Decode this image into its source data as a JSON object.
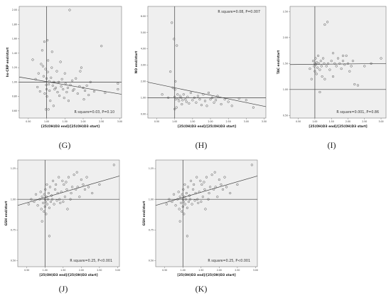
{
  "colors": {
    "plot_bg": "#efefef",
    "frame": "#7a7a7a",
    "ref_line": "#404040",
    "fit_line": "#404040",
    "point": "#444444"
  },
  "chart_data": [
    {
      "type": "scatter",
      "id": "G",
      "panel_label": "(G)",
      "xlabel": "[25(OH)D3 end]/[25(OH)D3 start]",
      "ylabel": "hs-CRP end/start",
      "xlim": [
        0.25,
        3.05
      ],
      "ylim": [
        0.5,
        2.05
      ],
      "xticks": [
        "0.50",
        "1.00",
        "1.50",
        "2.00",
        "2.50",
        "3.00"
      ],
      "yticks": [
        "0.60",
        "0.80",
        "1.00",
        "1.20",
        "1.40",
        "1.60",
        "1.80",
        "2.00"
      ],
      "xtick_values": [
        0.5,
        1.0,
        1.5,
        2.0,
        2.5,
        3.0
      ],
      "ytick_values": [
        0.6,
        0.8,
        1.0,
        1.2,
        1.4,
        1.6,
        1.8,
        2.0
      ],
      "ref_x": 1.0,
      "ref_y": 1.0,
      "fit": {
        "x1": 0.25,
        "y1": 1.07,
        "x2": 3.05,
        "y2": 0.83
      },
      "stat_text": "R square=0.03, P=0.10",
      "stat_pos": "bottom-right",
      "points": [
        [
          0.62,
          1.31
        ],
        [
          0.7,
          1.04
        ],
        [
          0.75,
          0.93
        ],
        [
          0.78,
          1.12
        ],
        [
          0.82,
          0.87
        ],
        [
          0.85,
          1.25
        ],
        [
          0.88,
          1.44
        ],
        [
          0.9,
          1.22
        ],
        [
          0.92,
          1.08
        ],
        [
          0.94,
          1.56
        ],
        [
          0.95,
          0.84
        ],
        [
          0.97,
          1.18
        ],
        [
          0.98,
          0.62
        ],
        [
          0.99,
          0.96
        ],
        [
          1.0,
          1.05
        ],
        [
          1.0,
          0.9
        ],
        [
          1.01,
          0.8
        ],
        [
          1.02,
          1.58
        ],
        [
          1.03,
          1.14
        ],
        [
          1.04,
          1.3
        ],
        [
          1.05,
          0.62
        ],
        [
          1.06,
          0.97
        ],
        [
          1.07,
          1.01
        ],
        [
          1.08,
          0.88
        ],
        [
          1.1,
          0.74
        ],
        [
          1.12,
          1.06
        ],
        [
          1.14,
          1.2
        ],
        [
          1.15,
          1.42
        ],
        [
          1.17,
          0.95
        ],
        [
          1.19,
          0.67
        ],
        [
          1.2,
          1.0
        ],
        [
          1.22,
          0.9
        ],
        [
          1.25,
          0.92
        ],
        [
          1.28,
          1.15
        ],
        [
          1.3,
          0.86
        ],
        [
          1.33,
          1.0
        ],
        [
          1.35,
          0.81
        ],
        [
          1.38,
          1.28
        ],
        [
          1.4,
          0.94
        ],
        [
          1.42,
          1.04
        ],
        [
          1.45,
          0.9
        ],
        [
          1.48,
          0.78
        ],
        [
          1.5,
          1.12
        ],
        [
          1.52,
          0.98
        ],
        [
          1.55,
          0.86
        ],
        [
          1.58,
          0.92
        ],
        [
          1.6,
          0.74
        ],
        [
          1.63,
          2.0
        ],
        [
          1.65,
          0.96
        ],
        [
          1.7,
          1.02
        ],
        [
          1.72,
          0.88
        ],
        [
          1.75,
          0.9
        ],
        [
          1.8,
          1.05
        ],
        [
          1.85,
          0.84
        ],
        [
          1.9,
          0.94
        ],
        [
          1.92,
          1.15
        ],
        [
          1.95,
          1.2
        ],
        [
          2.0,
          0.92
        ],
        [
          2.02,
          0.76
        ],
        [
          2.05,
          0.88
        ],
        [
          2.1,
          0.95
        ],
        [
          2.15,
          0.82
        ],
        [
          2.2,
          1.0
        ],
        [
          2.3,
          0.87
        ],
        [
          2.5,
          1.5
        ],
        [
          2.6,
          0.85
        ],
        [
          2.95,
          0.98
        ],
        [
          2.95,
          0.9
        ]
      ]
    },
    {
      "type": "scatter",
      "id": "H",
      "panel_label": "(H)",
      "xlabel": "[25(OH)D3 end]/[25(OH)D3 start]",
      "ylabel": "NO end/start",
      "xlim": [
        0.25,
        3.55
      ],
      "ylim": [
        -0.25,
        6.6
      ],
      "xticks": [
        "0.50",
        "1.00",
        "1.50",
        "2.00",
        "2.50",
        "3.00",
        "3.50"
      ],
      "yticks": [
        "0.00",
        "1.00",
        "2.00",
        "3.00",
        "4.00",
        "5.00",
        "6.00"
      ],
      "xtick_values": [
        0.5,
        1.0,
        1.5,
        2.0,
        2.5,
        3.0,
        3.5
      ],
      "ytick_values": [
        0.0,
        1.0,
        2.0,
        3.0,
        4.0,
        5.0,
        6.0
      ],
      "ref_x": 1.0,
      "ref_y": 1.0,
      "fit": {
        "x1": 0.25,
        "y1": 1.95,
        "x2": 3.55,
        "y2": 0.45
      },
      "stat_text": "R square=0.08, P=0.007",
      "stat_pos": "top-right",
      "points": [
        [
          0.65,
          1.2
        ],
        [
          0.82,
          1.0
        ],
        [
          0.88,
          2.6
        ],
        [
          0.92,
          5.6
        ],
        [
          0.95,
          1.6
        ],
        [
          0.98,
          4.6
        ],
        [
          1.0,
          1.05
        ],
        [
          1.0,
          0.3
        ],
        [
          1.01,
          1.5
        ],
        [
          1.02,
          2.0
        ],
        [
          1.03,
          0.9
        ],
        [
          1.05,
          0.4
        ],
        [
          1.06,
          4.2
        ],
        [
          1.08,
          1.2
        ],
        [
          1.1,
          0.95
        ],
        [
          1.12,
          0.8
        ],
        [
          1.15,
          1.1
        ],
        [
          1.18,
          1.0
        ],
        [
          1.2,
          0.6
        ],
        [
          1.22,
          0.85
        ],
        [
          1.25,
          1.2
        ],
        [
          1.3,
          0.9
        ],
        [
          1.33,
          0.75
        ],
        [
          1.36,
          1.05
        ],
        [
          1.4,
          0.65
        ],
        [
          1.45,
          1.3
        ],
        [
          1.5,
          0.85
        ],
        [
          1.55,
          1.0
        ],
        [
          1.6,
          0.7
        ],
        [
          1.65,
          1.1
        ],
        [
          1.7,
          0.9
        ],
        [
          1.75,
          0.55
        ],
        [
          1.8,
          1.2
        ],
        [
          1.85,
          0.8
        ],
        [
          1.9,
          0.5
        ],
        [
          1.95,
          1.3
        ],
        [
          2.0,
          0.9
        ],
        [
          2.05,
          1.0
        ],
        [
          2.1,
          0.7
        ],
        [
          2.15,
          0.85
        ],
        [
          2.2,
          1.1
        ],
        [
          2.3,
          0.6
        ],
        [
          2.4,
          0.9
        ],
        [
          2.5,
          0.75
        ],
        [
          2.6,
          0.5
        ],
        [
          2.8,
          0.95
        ],
        [
          3.0,
          0.85
        ],
        [
          3.2,
          0.4
        ]
      ]
    },
    {
      "type": "scatter",
      "id": "I",
      "panel_label": "(I)",
      "xlabel": "[25(OH)D3 end]/[25(OH)D3 start]",
      "ylabel": "TAC end/start",
      "xlim": [
        0.25,
        3.15
      ],
      "ylim": [
        0.45,
        2.6
      ],
      "xticks": [
        "0.50",
        "1.00",
        "1.50",
        "2.00",
        "2.50",
        "3.00"
      ],
      "yticks": [
        "0.50",
        "1.00",
        "1.50",
        "2.00",
        "2.50"
      ],
      "xtick_values": [
        0.5,
        1.0,
        1.5,
        2.0,
        2.5,
        3.0
      ],
      "ytick_values": [
        0.5,
        1.0,
        1.5,
        2.0,
        2.5
      ],
      "ref_x": 1.0,
      "ref_y": 1.0,
      "fit": {
        "x1": 0.25,
        "y1": 1.48,
        "x2": 3.15,
        "y2": 1.5
      },
      "stat_text": "R square=0.001, P=0.86",
      "stat_pos": "bottom-right",
      "points": [
        [
          0.85,
          1.4
        ],
        [
          0.9,
          1.2
        ],
        [
          0.95,
          1.55
        ],
        [
          0.98,
          1.45
        ],
        [
          1.0,
          1.5
        ],
        [
          1.0,
          1.35
        ],
        [
          1.02,
          1.6
        ],
        [
          1.03,
          1.48
        ],
        [
          1.05,
          1.3
        ],
        [
          1.06,
          1.52
        ],
        [
          1.08,
          1.42
        ],
        [
          1.1,
          1.65
        ],
        [
          1.12,
          1.5
        ],
        [
          1.15,
          1.38
        ],
        [
          1.18,
          1.55
        ],
        [
          1.2,
          1.45
        ],
        [
          1.22,
          1.25
        ],
        [
          1.25,
          1.6
        ],
        [
          1.28,
          1.5
        ],
        [
          1.3,
          1.2
        ],
        [
          1.35,
          1.45
        ],
        [
          1.38,
          2.3
        ],
        [
          1.4,
          1.5
        ],
        [
          1.45,
          1.38
        ],
        [
          1.5,
          1.55
        ],
        [
          1.55,
          1.25
        ],
        [
          1.6,
          1.5
        ],
        [
          1.65,
          1.45
        ],
        [
          1.7,
          1.6
        ],
        [
          1.75,
          1.5
        ],
        [
          1.8,
          1.4
        ],
        [
          1.85,
          1.55
        ],
        [
          1.9,
          1.48
        ],
        [
          1.95,
          1.65
        ],
        [
          2.0,
          1.5
        ],
        [
          2.05,
          1.35
        ],
        [
          2.1,
          1.45
        ],
        [
          2.15,
          1.55
        ],
        [
          2.2,
          1.1
        ],
        [
          2.3,
          1.08
        ],
        [
          2.5,
          1.45
        ],
        [
          2.7,
          1.5
        ],
        [
          3.0,
          1.6
        ],
        [
          1.3,
          2.25
        ],
        [
          1.15,
          0.95
        ],
        [
          1.55,
          1.7
        ],
        [
          1.85,
          1.65
        ]
      ]
    },
    {
      "type": "scatter",
      "id": "J",
      "panel_label": "(J)",
      "xlabel": "[25(OH)D3 end]/[25(OH)D3 start]",
      "ylabel": "GSH end/start",
      "xlim": [
        0.25,
        3.05
      ],
      "ylim": [
        0.45,
        1.32
      ],
      "xticks": [
        "0.50",
        "1.00",
        "1.50",
        "2.00",
        "2.50",
        "3.00"
      ],
      "yticks": [
        "0.50",
        "0.75",
        "1.00",
        "1.25"
      ],
      "xtick_values": [
        0.5,
        1.0,
        1.5,
        2.0,
        2.5,
        3.0
      ],
      "ytick_values": [
        0.5,
        0.75,
        1.0,
        1.25
      ],
      "ref_x": 1.0,
      "ref_y": 1.0,
      "fit": {
        "x1": 0.25,
        "y1": 0.95,
        "x2": 3.05,
        "y2": 1.19
      },
      "stat_text": "R square=0.25, P<0.001",
      "stat_pos": "bottom-right",
      "points": [
        [
          0.55,
          0.96
        ],
        [
          0.62,
          1.0
        ],
        [
          0.7,
          0.98
        ],
        [
          0.75,
          1.04
        ],
        [
          0.8,
          0.95
        ],
        [
          0.85,
          1.0
        ],
        [
          0.88,
          1.06
        ],
        [
          0.9,
          0.92
        ],
        [
          0.92,
          1.02
        ],
        [
          0.95,
          0.97
        ],
        [
          0.97,
          0.9
        ],
        [
          0.98,
          1.04
        ],
        [
          1.0,
          1.0
        ],
        [
          1.0,
          0.94
        ],
        [
          1.01,
          1.08
        ],
        [
          1.02,
          0.98
        ],
        [
          1.03,
          0.88
        ],
        [
          1.04,
          1.02
        ],
        [
          1.05,
          1.12
        ],
        [
          1.06,
          0.96
        ],
        [
          1.08,
          1.0
        ],
        [
          1.1,
          1.05
        ],
        [
          1.12,
          0.93
        ],
        [
          1.14,
          1.1
        ],
        [
          1.16,
          0.98
        ],
        [
          1.18,
          1.03
        ],
        [
          1.2,
          1.0
        ],
        [
          1.22,
          1.15
        ],
        [
          1.25,
          0.96
        ],
        [
          1.28,
          1.08
        ],
        [
          1.3,
          1.12
        ],
        [
          1.33,
          0.99
        ],
        [
          1.35,
          1.05
        ],
        [
          1.38,
          1.18
        ],
        [
          1.4,
          1.0
        ],
        [
          1.42,
          0.97
        ],
        [
          1.45,
          1.06
        ],
        [
          1.48,
          1.15
        ],
        [
          1.5,
          0.98
        ],
        [
          1.52,
          1.12
        ],
        [
          1.55,
          1.02
        ],
        [
          1.58,
          1.14
        ],
        [
          1.6,
          1.08
        ],
        [
          1.62,
          0.92
        ],
        [
          1.65,
          1.18
        ],
        [
          1.7,
          1.0
        ],
        [
          1.72,
          1.05
        ],
        [
          1.75,
          1.1
        ],
        [
          1.8,
          1.2
        ],
        [
          1.85,
          1.08
        ],
        [
          1.88,
          1.22
        ],
        [
          1.9,
          1.1
        ],
        [
          1.95,
          1.02
        ],
        [
          2.0,
          1.16
        ],
        [
          2.05,
          1.12
        ],
        [
          2.1,
          1.08
        ],
        [
          2.15,
          1.18
        ],
        [
          2.2,
          1.1
        ],
        [
          2.3,
          1.05
        ],
        [
          2.5,
          1.12
        ],
        [
          2.9,
          1.28
        ],
        [
          1.12,
          0.7
        ],
        [
          0.92,
          0.82
        ]
      ]
    },
    {
      "type": "scatter",
      "id": "K",
      "panel_label": "(K)",
      "xlabel": "[25(OH)D3 end]/[25(OH)D3 start]",
      "ylabel": "GSH end/start",
      "xlim": [
        0.25,
        3.05
      ],
      "ylim": [
        0.45,
        1.32
      ],
      "xticks": [
        "0.50",
        "1.00",
        "1.50",
        "2.00",
        "2.50",
        "3.00"
      ],
      "yticks": [
        "0.50",
        "0.75",
        "1.00",
        "1.25"
      ],
      "xtick_values": [
        0.5,
        1.0,
        1.5,
        2.0,
        2.5,
        3.0
      ],
      "ytick_values": [
        0.5,
        0.75,
        1.0,
        1.25
      ],
      "ref_x": 1.0,
      "ref_y": 1.0,
      "fit": {
        "x1": 0.25,
        "y1": 0.95,
        "x2": 3.05,
        "y2": 1.19
      },
      "stat_text": "R square=0.25, P<0.001",
      "stat_pos": "bottom-right",
      "points": [
        [
          0.55,
          0.96
        ],
        [
          0.62,
          1.0
        ],
        [
          0.7,
          0.98
        ],
        [
          0.75,
          1.04
        ],
        [
          0.8,
          0.95
        ],
        [
          0.85,
          1.0
        ],
        [
          0.88,
          1.06
        ],
        [
          0.9,
          0.92
        ],
        [
          0.92,
          1.02
        ],
        [
          0.95,
          0.97
        ],
        [
          0.97,
          0.9
        ],
        [
          0.98,
          1.04
        ],
        [
          1.0,
          1.0
        ],
        [
          1.0,
          0.94
        ],
        [
          1.01,
          1.08
        ],
        [
          1.02,
          0.98
        ],
        [
          1.03,
          0.88
        ],
        [
          1.04,
          1.02
        ],
        [
          1.05,
          1.12
        ],
        [
          1.06,
          0.96
        ],
        [
          1.08,
          1.0
        ],
        [
          1.1,
          1.05
        ],
        [
          1.12,
          0.93
        ],
        [
          1.14,
          1.1
        ],
        [
          1.16,
          0.98
        ],
        [
          1.18,
          1.03
        ],
        [
          1.2,
          1.0
        ],
        [
          1.22,
          1.15
        ],
        [
          1.25,
          0.96
        ],
        [
          1.28,
          1.08
        ],
        [
          1.3,
          1.12
        ],
        [
          1.33,
          0.99
        ],
        [
          1.35,
          1.05
        ],
        [
          1.38,
          1.18
        ],
        [
          1.4,
          1.0
        ],
        [
          1.42,
          0.97
        ],
        [
          1.45,
          1.06
        ],
        [
          1.48,
          1.15
        ],
        [
          1.5,
          0.98
        ],
        [
          1.52,
          1.12
        ],
        [
          1.55,
          1.02
        ],
        [
          1.58,
          1.14
        ],
        [
          1.6,
          1.08
        ],
        [
          1.62,
          0.92
        ],
        [
          1.65,
          1.18
        ],
        [
          1.7,
          1.0
        ],
        [
          1.72,
          1.05
        ],
        [
          1.75,
          1.1
        ],
        [
          1.8,
          1.2
        ],
        [
          1.85,
          1.08
        ],
        [
          1.88,
          1.22
        ],
        [
          1.9,
          1.1
        ],
        [
          1.95,
          1.02
        ],
        [
          2.0,
          1.16
        ],
        [
          2.05,
          1.12
        ],
        [
          2.1,
          1.08
        ],
        [
          2.15,
          1.18
        ],
        [
          2.2,
          1.1
        ],
        [
          2.3,
          1.05
        ],
        [
          2.5,
          1.12
        ],
        [
          2.9,
          1.28
        ],
        [
          1.12,
          0.7
        ],
        [
          0.92,
          0.82
        ]
      ]
    }
  ]
}
